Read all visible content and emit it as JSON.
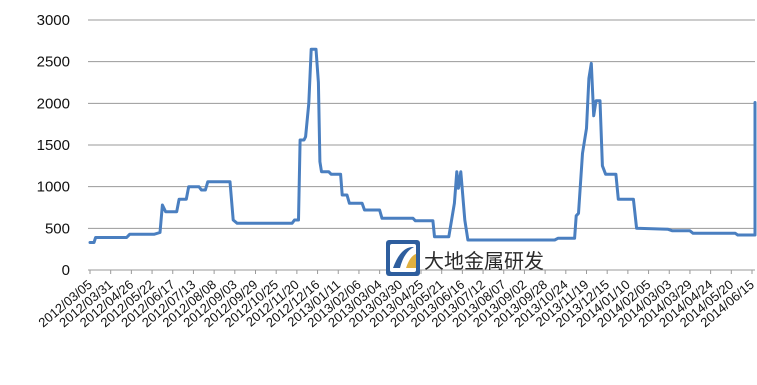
{
  "chart_data": {
    "type": "line",
    "title": "",
    "xlabel": "",
    "ylabel": "",
    "ylim": [
      0,
      3000
    ],
    "yticks": [
      0,
      500,
      1000,
      1500,
      2000,
      2500,
      3000
    ],
    "grid": "horizontal",
    "categories": [
      "2012/03/05",
      "2012/03/31",
      "2012/04/26",
      "2012/05/22",
      "2012/06/17",
      "2012/07/13",
      "2012/08/08",
      "2012/09/03",
      "2012/09/29",
      "2012/10/25",
      "2012/11/20",
      "2012/12/16",
      "2013/01/11",
      "2013/02/06",
      "2013/03/04",
      "2013/03/30",
      "2013/04/25",
      "2013/05/21",
      "2013/06/16",
      "2013/07/12",
      "2013/08/07",
      "2013/09/02",
      "2013/09/28",
      "2013/10/24",
      "2013/11/19",
      "2013/12/15",
      "2014/01/10",
      "2014/02/05",
      "2014/03/03",
      "2014/03/29",
      "2014/04/24",
      "2014/05/20",
      "2014/06/15"
    ],
    "series": [
      {
        "color": "#4a7fc0",
        "points": [
          {
            "x": "2012/03/05",
            "y": 330
          },
          {
            "x": "2012/03/10",
            "y": 330
          },
          {
            "x": "2012/03/12",
            "y": 390
          },
          {
            "x": "2012/04/20",
            "y": 390
          },
          {
            "x": "2012/04/24",
            "y": 430
          },
          {
            "x": "2012/05/25",
            "y": 430
          },
          {
            "x": "2012/06/01",
            "y": 450
          },
          {
            "x": "2012/06/04",
            "y": 780
          },
          {
            "x": "2012/06/08",
            "y": 700
          },
          {
            "x": "2012/06/22",
            "y": 700
          },
          {
            "x": "2012/06/25",
            "y": 850
          },
          {
            "x": "2012/07/04",
            "y": 850
          },
          {
            "x": "2012/07/07",
            "y": 1000
          },
          {
            "x": "2012/07/20",
            "y": 1000
          },
          {
            "x": "2012/07/23",
            "y": 960
          },
          {
            "x": "2012/07/28",
            "y": 960
          },
          {
            "x": "2012/07/31",
            "y": 1060
          },
          {
            "x": "2012/08/28",
            "y": 1060
          },
          {
            "x": "2012/09/01",
            "y": 600
          },
          {
            "x": "2012/09/06",
            "y": 560
          },
          {
            "x": "2012/11/14",
            "y": 560
          },
          {
            "x": "2012/11/17",
            "y": 600
          },
          {
            "x": "2012/11/22",
            "y": 600
          },
          {
            "x": "2012/11/24",
            "y": 1560
          },
          {
            "x": "2012/11/29",
            "y": 1560
          },
          {
            "x": "2012/12/01",
            "y": 1600
          },
          {
            "x": "2012/12/05",
            "y": 2000
          },
          {
            "x": "2012/12/08",
            "y": 2650
          },
          {
            "x": "2012/12/14",
            "y": 2650
          },
          {
            "x": "2012/12/17",
            "y": 2250
          },
          {
            "x": "2012/12/19",
            "y": 1300
          },
          {
            "x": "2012/12/21",
            "y": 1180
          },
          {
            "x": "2012/12/30",
            "y": 1180
          },
          {
            "x": "2013/01/02",
            "y": 1150
          },
          {
            "x": "2013/01/14",
            "y": 1150
          },
          {
            "x": "2013/01/16",
            "y": 900
          },
          {
            "x": "2013/01/22",
            "y": 900
          },
          {
            "x": "2013/01/25",
            "y": 800
          },
          {
            "x": "2013/02/10",
            "y": 800
          },
          {
            "x": "2013/02/13",
            "y": 720
          },
          {
            "x": "2013/03/04",
            "y": 720
          },
          {
            "x": "2013/03/07",
            "y": 620
          },
          {
            "x": "2013/04/15",
            "y": 620
          },
          {
            "x": "2013/04/18",
            "y": 590
          },
          {
            "x": "2013/05/10",
            "y": 590
          },
          {
            "x": "2013/05/12",
            "y": 400
          },
          {
            "x": "2013/05/30",
            "y": 400
          },
          {
            "x": "2013/06/06",
            "y": 800
          },
          {
            "x": "2013/06/09",
            "y": 1180
          },
          {
            "x": "2013/06/11",
            "y": 980
          },
          {
            "x": "2013/06/14",
            "y": 1180
          },
          {
            "x": "2013/06/19",
            "y": 600
          },
          {
            "x": "2013/06/23",
            "y": 360
          },
          {
            "x": "2013/10/10",
            "y": 360
          },
          {
            "x": "2013/10/14",
            "y": 380
          },
          {
            "x": "2013/11/04",
            "y": 380
          },
          {
            "x": "2013/11/06",
            "y": 650
          },
          {
            "x": "2013/11/09",
            "y": 680
          },
          {
            "x": "2013/11/14",
            "y": 1400
          },
          {
            "x": "2013/11/19",
            "y": 1700
          },
          {
            "x": "2013/11/22",
            "y": 2300
          },
          {
            "x": "2013/11/25",
            "y": 2480
          },
          {
            "x": "2013/11/28",
            "y": 1850
          },
          {
            "x": "2013/12/01",
            "y": 2030
          },
          {
            "x": "2013/12/06",
            "y": 2030
          },
          {
            "x": "2013/12/09",
            "y": 1250
          },
          {
            "x": "2013/12/13",
            "y": 1150
          },
          {
            "x": "2013/12/26",
            "y": 1150
          },
          {
            "x": "2013/12/29",
            "y": 850
          },
          {
            "x": "2014/01/17",
            "y": 850
          },
          {
            "x": "2014/01/21",
            "y": 500
          },
          {
            "x": "2014/03/01",
            "y": 490
          },
          {
            "x": "2014/03/07",
            "y": 470
          },
          {
            "x": "2014/03/29",
            "y": 470
          },
          {
            "x": "2014/04/02",
            "y": 440
          },
          {
            "x": "2014/05/25",
            "y": 440
          },
          {
            "x": "2014/05/28",
            "y": 420
          },
          {
            "x": "2014/06/23",
            "y": 420
          },
          {
            "x": "2014/06/28",
            "y": 1100
          },
          {
            "x": "2014/07/01",
            "y": 2010
          },
          {
            "x": "2014/07/12",
            "y": 2010
          }
        ]
      }
    ]
  },
  "watermark": {
    "text": "大地金属研发",
    "logo": "ddjs-logo-icon",
    "logo_colors": [
      "#2e5e9e",
      "#e0b040"
    ]
  }
}
